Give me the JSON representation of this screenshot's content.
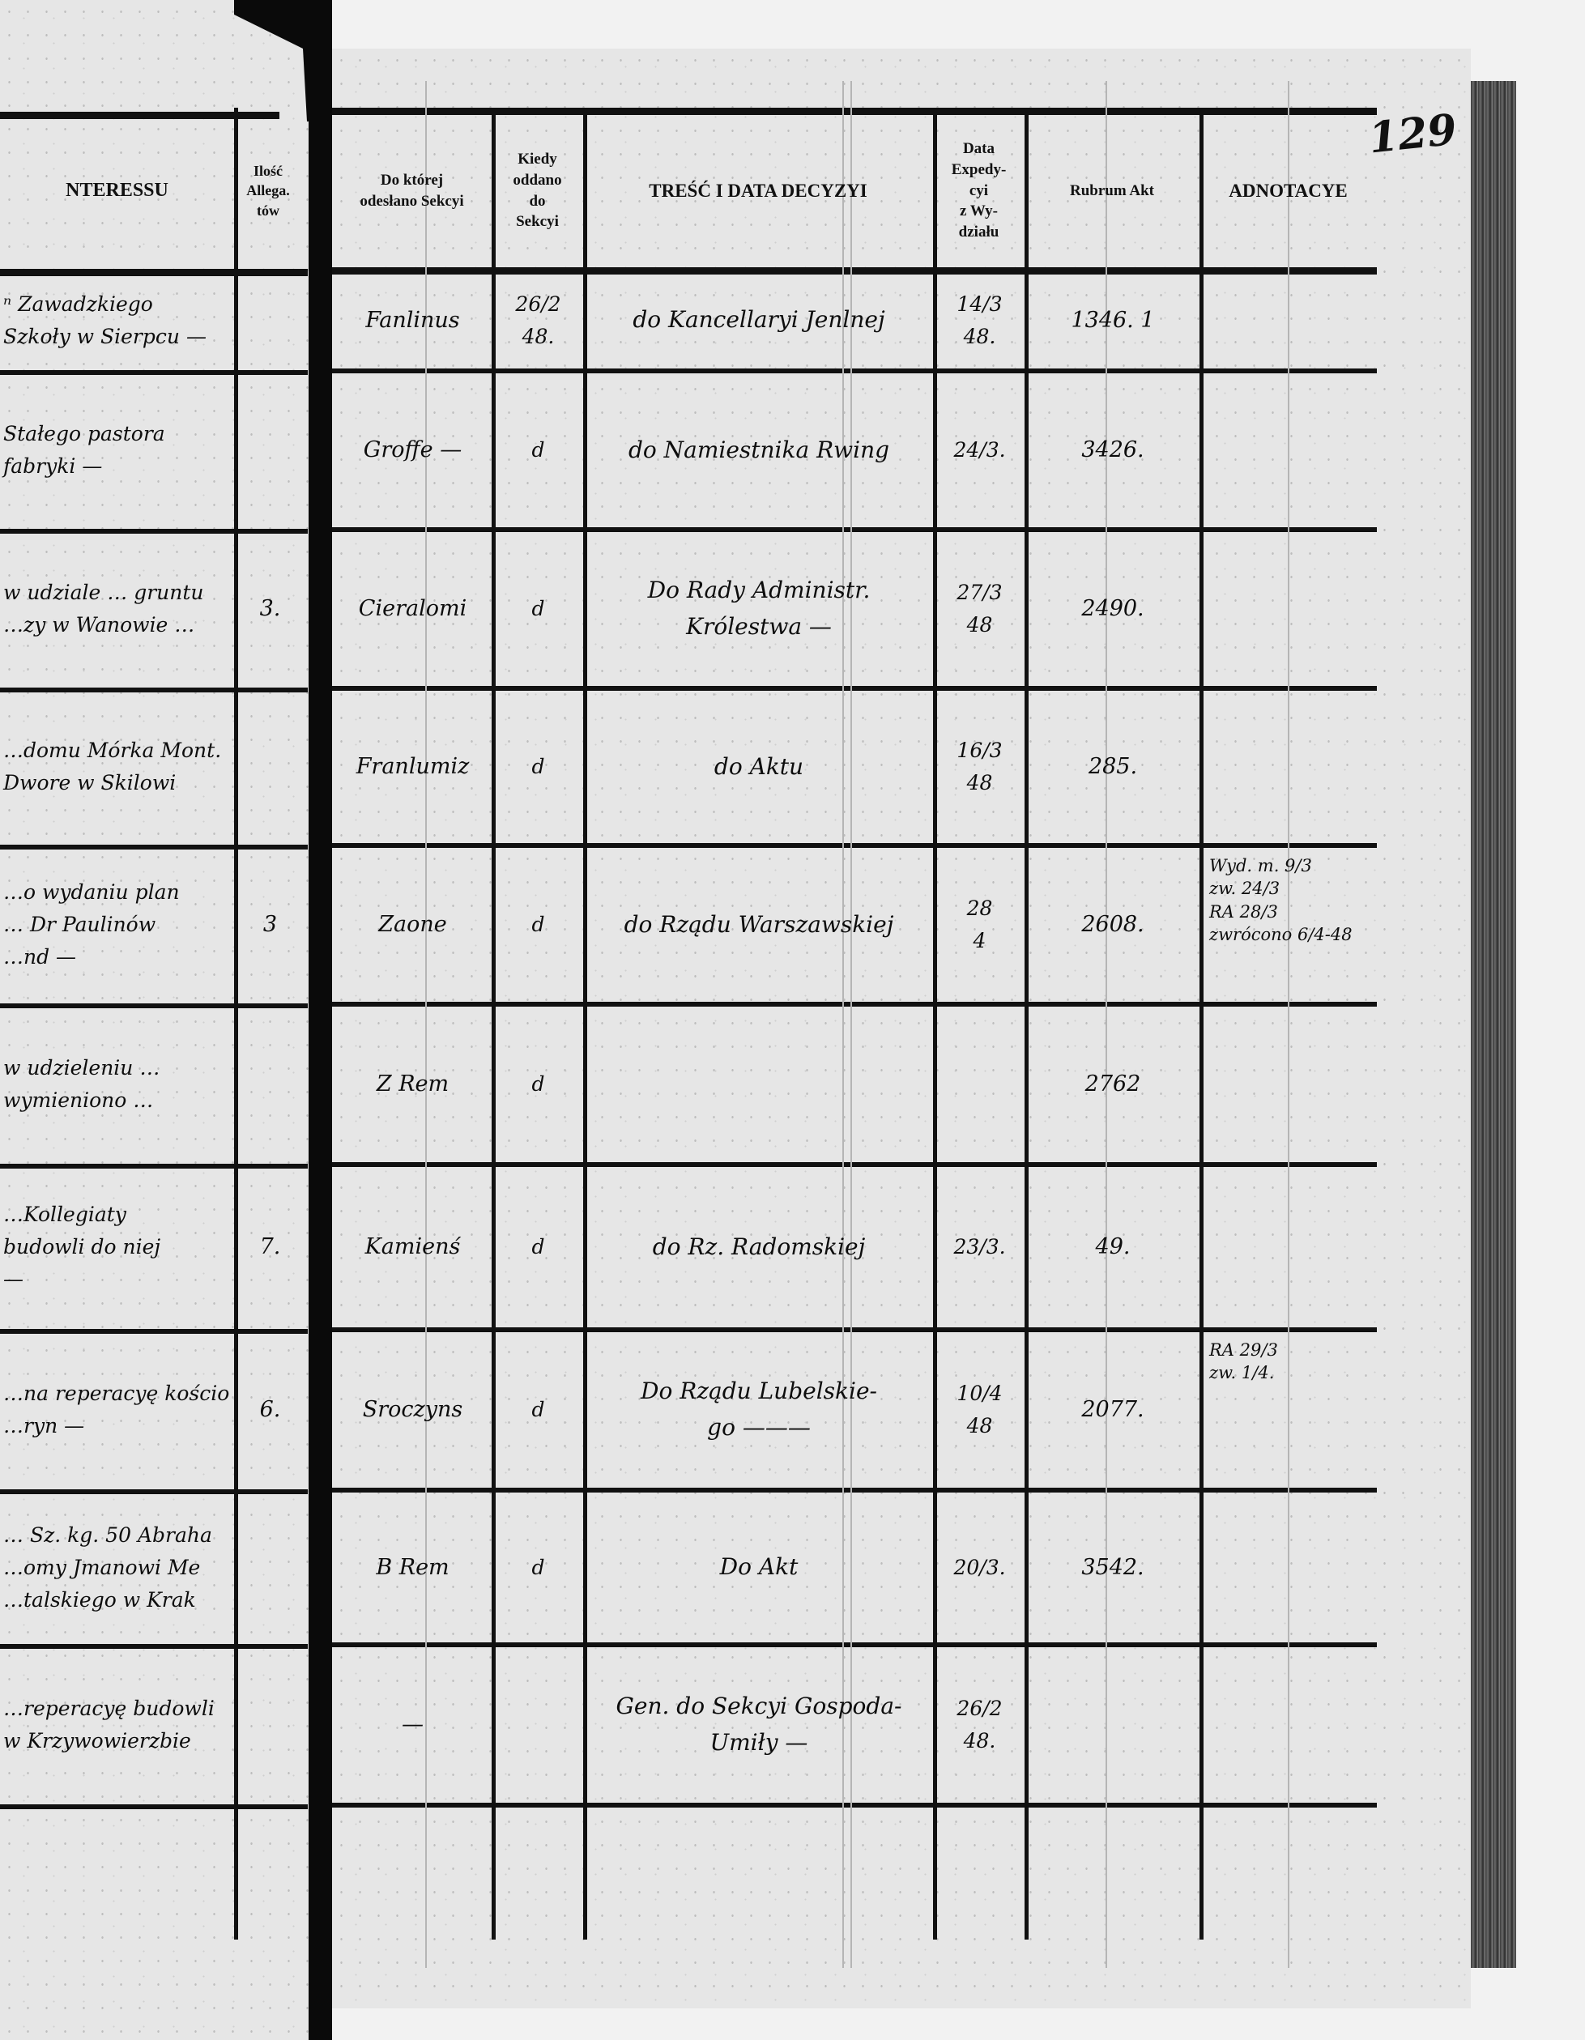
{
  "page_number": "129",
  "left_page": {
    "headers": {
      "interessu": "NTERESSU",
      "allegatow": "Ilość\nAllega.\ntów"
    },
    "rows": [
      {
        "subject": "ⁿ Zawadzkiego\nSzkoły w Sierpcu —",
        "allegations": ""
      },
      {
        "subject": "Stałego pastora\nfabryki —",
        "allegations": ""
      },
      {
        "subject": "w udziale … gruntu\n…zy w Wanowie …",
        "allegations": "3."
      },
      {
        "subject": "…domu Mórka Mont.\nDwore w Skilowi",
        "allegations": ""
      },
      {
        "subject": "…o wydaniu plan\n… Dr Paulinów\n…nd —",
        "allegations": "3"
      },
      {
        "subject": "w udzieleniu …\nwymieniono …",
        "allegations": ""
      },
      {
        "subject": "…Kollegiaty\nbudowli do niej\n—",
        "allegations": "7."
      },
      {
        "subject": "…na reperacyę kościo\n…ryn —",
        "allegations": "6."
      },
      {
        "subject": "… Sz. kg. 50 Abraha\n…omy Jmanowi Me\n…talskiego w Krak",
        "allegations": ""
      },
      {
        "subject": "…reperacyę budowli\nw Krzywowierzbie",
        "allegations": ""
      }
    ]
  },
  "right_page": {
    "headers": {
      "section": "Do której\nodesłano Sekcyi",
      "when": "Kiedy\noddano\ndo\nSekcyi",
      "decision": "TREŚĆ I DATA DECYZYI",
      "expedition": "Data\nExpedy-\ncyi\nz Wy-\ndziału",
      "rubrum": "Rubrum Akt",
      "annotations": "ADNOTACYE"
    },
    "rows": [
      {
        "section": "Fanlinus",
        "when": "26/2\n48.",
        "decision": "do Kancellaryi Jenlnej",
        "expedition": "14/3\n48.",
        "rubrum": "1346. 1",
        "annotations": ""
      },
      {
        "section": "Groffe —",
        "when": "d",
        "decision": "do Namiestnika Rwing",
        "expedition": "24/3.",
        "rubrum": "3426.",
        "annotations": ""
      },
      {
        "section": "Cieralomi",
        "when": "d",
        "decision": "Do Rady Administr.\nKrólestwa —",
        "expedition": "27/3\n48",
        "rubrum": "2490.",
        "annotations": ""
      },
      {
        "section": "Franlumiz",
        "when": "d",
        "decision": "do Aktu",
        "expedition": "16/3\n48",
        "rubrum": "285.",
        "annotations": ""
      },
      {
        "section": "Zaone",
        "when": "d",
        "decision": "do Rządu Warszawskiej",
        "expedition": "28\n4",
        "rubrum": "2608.",
        "annotations": "Wyd. m. 9/3\n  zw. 24/3\nRA 28/3\nzwrócono 6/4-48"
      },
      {
        "section": "Z Rem",
        "when": "d",
        "decision": "",
        "expedition": "",
        "rubrum": "2762",
        "annotations": ""
      },
      {
        "section": "Kamienś",
        "when": "d",
        "decision": "do Rz. Radomskiej",
        "expedition": "23/3.",
        "rubrum": "49.",
        "annotations": ""
      },
      {
        "section": "Sroczyns",
        "when": "d",
        "decision": "Do Rządu Lubelskie-\ngo ———",
        "expedition": "10/4\n48",
        "rubrum": "2077.",
        "annotations": "RA 29/3\nzw. 1/4."
      },
      {
        "section": "B Rem",
        "when": "d",
        "decision": "Do Akt",
        "expedition": "20/3.",
        "rubrum": "3542.",
        "annotations": ""
      },
      {
        "section": "—",
        "when": "",
        "decision": "Gen. do Sekcyi Gospoda-\nUmiły —",
        "expedition": "26/2\n48.",
        "rubrum": "",
        "annotations": ""
      }
    ]
  }
}
